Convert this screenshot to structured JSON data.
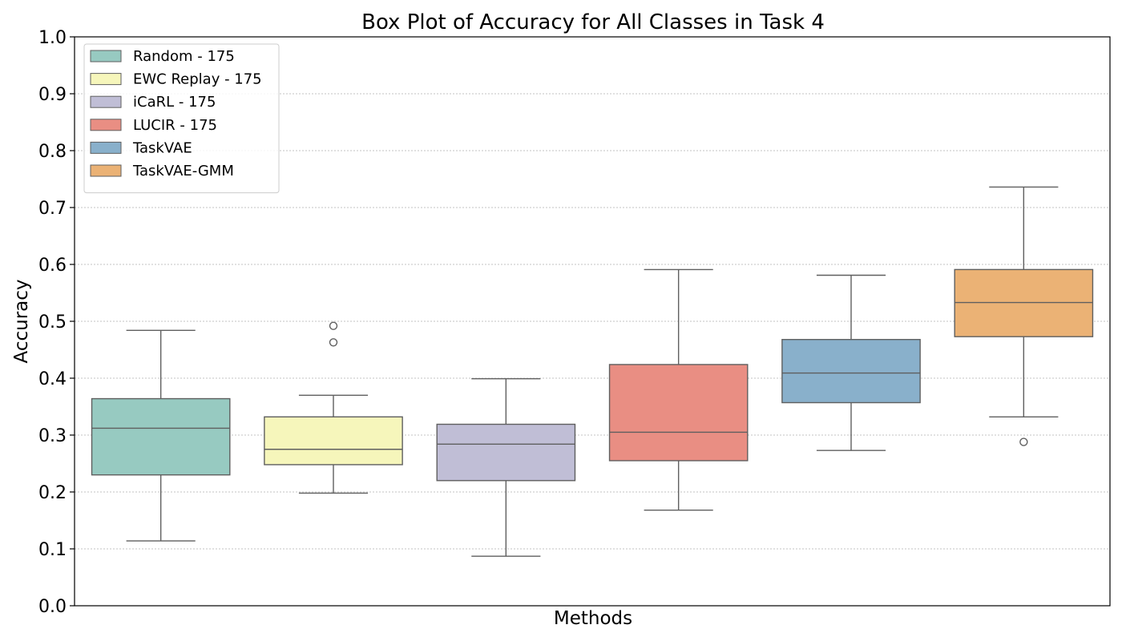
{
  "chart_data": {
    "type": "box",
    "title": "Box Plot of Accuracy for All Classes in Task 4",
    "xlabel": "Methods",
    "ylabel": "Accuracy",
    "ylim": [
      0.0,
      1.0
    ],
    "yticks": [
      0.0,
      0.1,
      0.2,
      0.3,
      0.4,
      0.5,
      0.6,
      0.7,
      0.8,
      0.9,
      1.0
    ],
    "ytick_labels": [
      "0.0",
      "0.1",
      "0.2",
      "0.3",
      "0.4",
      "0.5",
      "0.6",
      "0.7",
      "0.8",
      "0.9",
      "1.0"
    ],
    "grid": "horizontal dotted",
    "legend_position": "top-left",
    "series": [
      {
        "name": "Random - 175",
        "color": "#97cac1",
        "whisker_low": 0.114,
        "q1": 0.23,
        "median": 0.312,
        "q3": 0.364,
        "whisker_high": 0.484,
        "outliers": []
      },
      {
        "name": "EWC Replay - 175",
        "color": "#f6f6bb",
        "whisker_low": 0.198,
        "q1": 0.248,
        "median": 0.275,
        "q3": 0.332,
        "whisker_high": 0.37,
        "outliers": [
          0.492,
          0.463
        ]
      },
      {
        "name": "iCaRL - 175",
        "color": "#c0bed6",
        "whisker_low": 0.087,
        "q1": 0.22,
        "median": 0.284,
        "q3": 0.319,
        "whisker_high": 0.399,
        "outliers": []
      },
      {
        "name": "LUCIR - 175",
        "color": "#e98e83",
        "whisker_low": 0.168,
        "q1": 0.255,
        "median": 0.305,
        "q3": 0.424,
        "whisker_high": 0.591,
        "outliers": []
      },
      {
        "name": "TaskVAE",
        "color": "#89b0cb",
        "whisker_low": 0.273,
        "q1": 0.357,
        "median": 0.409,
        "q3": 0.468,
        "whisker_high": 0.581,
        "outliers": []
      },
      {
        "name": "TaskVAE-GMM",
        "color": "#ebb275",
        "whisker_low": 0.332,
        "q1": 0.473,
        "median": 0.533,
        "q3": 0.591,
        "whisker_high": 0.736,
        "outliers": [
          0.288
        ]
      }
    ]
  }
}
